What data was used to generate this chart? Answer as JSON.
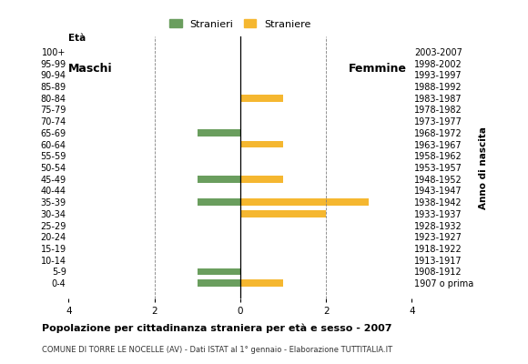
{
  "age_groups": [
    "100+",
    "95-99",
    "90-94",
    "85-89",
    "80-84",
    "75-79",
    "70-74",
    "65-69",
    "60-64",
    "55-59",
    "50-54",
    "45-49",
    "40-44",
    "35-39",
    "30-34",
    "25-29",
    "20-24",
    "15-19",
    "10-14",
    "5-9",
    "0-4"
  ],
  "birth_years": [
    "1907 o prima",
    "1908-1912",
    "1913-1917",
    "1918-1922",
    "1923-1927",
    "1928-1932",
    "1933-1937",
    "1938-1942",
    "1943-1947",
    "1948-1952",
    "1953-1957",
    "1958-1962",
    "1963-1967",
    "1968-1972",
    "1973-1977",
    "1978-1982",
    "1983-1987",
    "1988-1992",
    "1993-1997",
    "1998-2002",
    "2003-2007"
  ],
  "stranieri_maschi": [
    0,
    0,
    0,
    0,
    0,
    0,
    0,
    1,
    0,
    0,
    0,
    1,
    0,
    1,
    0,
    0,
    0,
    0,
    0,
    1,
    1
  ],
  "straniere_femmine": [
    0,
    0,
    0,
    0,
    1,
    0,
    0,
    0,
    1,
    0,
    0,
    1,
    0,
    3,
    2,
    0,
    0,
    0,
    0,
    0,
    1
  ],
  "color_maschi": "#6a9e5e",
  "color_femmine": "#f5b730",
  "title": "Popolazione per cittadinanza straniera per età e sesso - 2007",
  "subtitle": "COMUNE DI TORRE LE NOCELLE (AV) - Dati ISTAT al 1° gennaio - Elaborazione TUTTITALIA.IT",
  "legend_maschi": "Stranieri",
  "legend_femmine": "Straniere",
  "xlabel_left": "Età",
  "xlabel_right": "Anno di nascita",
  "label_maschi": "Maschi",
  "label_femmine": "Femmine",
  "xlim": 4,
  "xticks": [
    -4,
    -2,
    0,
    2,
    4
  ],
  "xticklabels": [
    "4",
    "2",
    "0",
    "2",
    "4"
  ]
}
